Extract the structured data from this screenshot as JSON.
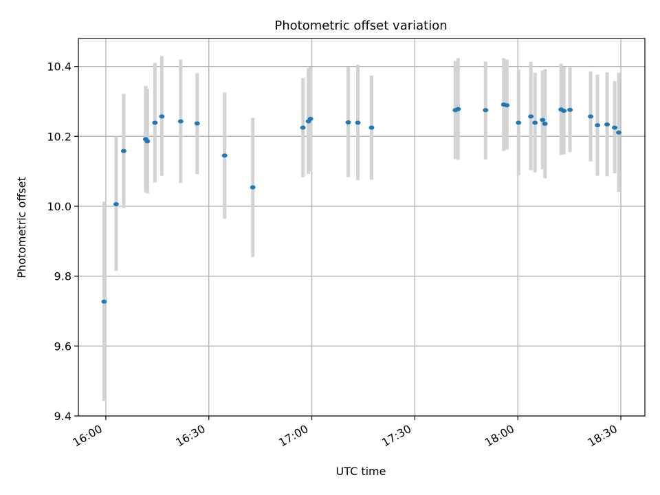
{
  "chart_data": {
    "type": "scatter",
    "title": "Photometric offset variation",
    "xlabel": "UTC time",
    "ylabel": "Photometric offset",
    "xlim": [
      "15:52",
      "18:37"
    ],
    "ylim": [
      9.4,
      10.48
    ],
    "xticks": [
      "16:00",
      "16:30",
      "17:00",
      "17:30",
      "18:00",
      "18:30"
    ],
    "yticks": [
      "9.4",
      "9.6",
      "9.8",
      "10.0",
      "10.2",
      "10.4"
    ],
    "grid": true,
    "colors": {
      "point": "#1f77b4",
      "errorbar": "#d3d3d3",
      "grid": "#b0b0b0"
    },
    "points": [
      {
        "x": "15:59.5",
        "y": 9.727,
        "low": 9.443,
        "high": 10.013
      },
      {
        "x": "16:03.0",
        "y": 10.006,
        "low": 9.815,
        "high": 10.2
      },
      {
        "x": "16:05.2",
        "y": 10.158,
        "low": 9.995,
        "high": 10.322
      },
      {
        "x": "16:11.6",
        "y": 10.192,
        "low": 10.04,
        "high": 10.344
      },
      {
        "x": "16:12.1",
        "y": 10.186,
        "low": 10.037,
        "high": 10.336
      },
      {
        "x": "16:14.3",
        "y": 10.239,
        "low": 10.068,
        "high": 10.41
      },
      {
        "x": "16:16.3",
        "y": 10.257,
        "low": 10.087,
        "high": 10.429
      },
      {
        "x": "16:21.8",
        "y": 10.243,
        "low": 10.067,
        "high": 10.42
      },
      {
        "x": "16:26.6",
        "y": 10.237,
        "low": 10.092,
        "high": 10.381
      },
      {
        "x": "16:34.6",
        "y": 10.145,
        "low": 9.964,
        "high": 10.326
      },
      {
        "x": "16:42.8",
        "y": 10.054,
        "low": 9.855,
        "high": 10.253
      },
      {
        "x": "16:57.4",
        "y": 10.225,
        "low": 10.083,
        "high": 10.367
      },
      {
        "x": "16:59.0",
        "y": 10.243,
        "low": 10.092,
        "high": 10.395
      },
      {
        "x": "16:59.6",
        "y": 10.25,
        "low": 10.1,
        "high": 10.398
      },
      {
        "x": "17:10.6",
        "y": 10.24,
        "low": 10.083,
        "high": 10.399
      },
      {
        "x": "17:13.4",
        "y": 10.239,
        "low": 10.075,
        "high": 10.405
      },
      {
        "x": "17:17.4",
        "y": 10.225,
        "low": 10.076,
        "high": 10.374
      },
      {
        "x": "17:41.8",
        "y": 10.275,
        "low": 10.135,
        "high": 10.416
      },
      {
        "x": "17:42.6",
        "y": 10.278,
        "low": 10.133,
        "high": 10.424
      },
      {
        "x": "17:50.6",
        "y": 10.275,
        "low": 10.134,
        "high": 10.414
      },
      {
        "x": "17:55.9",
        "y": 10.291,
        "low": 10.158,
        "high": 10.424
      },
      {
        "x": "17:56.8",
        "y": 10.289,
        "low": 10.162,
        "high": 10.42
      },
      {
        "x": "18:00.2",
        "y": 10.239,
        "low": 10.088,
        "high": 10.391
      },
      {
        "x": "18:03.8",
        "y": 10.257,
        "low": 10.103,
        "high": 10.413
      },
      {
        "x": "18:05.0",
        "y": 10.239,
        "low": 10.097,
        "high": 10.382
      },
      {
        "x": "18:07.2",
        "y": 10.247,
        "low": 10.106,
        "high": 10.388
      },
      {
        "x": "18:07.9",
        "y": 10.236,
        "low": 10.08,
        "high": 10.392
      },
      {
        "x": "18:12.6",
        "y": 10.277,
        "low": 10.147,
        "high": 10.408
      },
      {
        "x": "18:13.4",
        "y": 10.273,
        "low": 10.148,
        "high": 10.399
      },
      {
        "x": "18:15.2",
        "y": 10.276,
        "low": 10.155,
        "high": 10.397
      },
      {
        "x": "18:21.2",
        "y": 10.257,
        "low": 10.128,
        "high": 10.386
      },
      {
        "x": "18:23.2",
        "y": 10.232,
        "low": 10.087,
        "high": 10.377
      },
      {
        "x": "18:26.0",
        "y": 10.234,
        "low": 10.086,
        "high": 10.383
      },
      {
        "x": "18:28.2",
        "y": 10.225,
        "low": 10.094,
        "high": 10.358
      },
      {
        "x": "18:29.4",
        "y": 10.211,
        "low": 10.041,
        "high": 10.382
      }
    ]
  }
}
